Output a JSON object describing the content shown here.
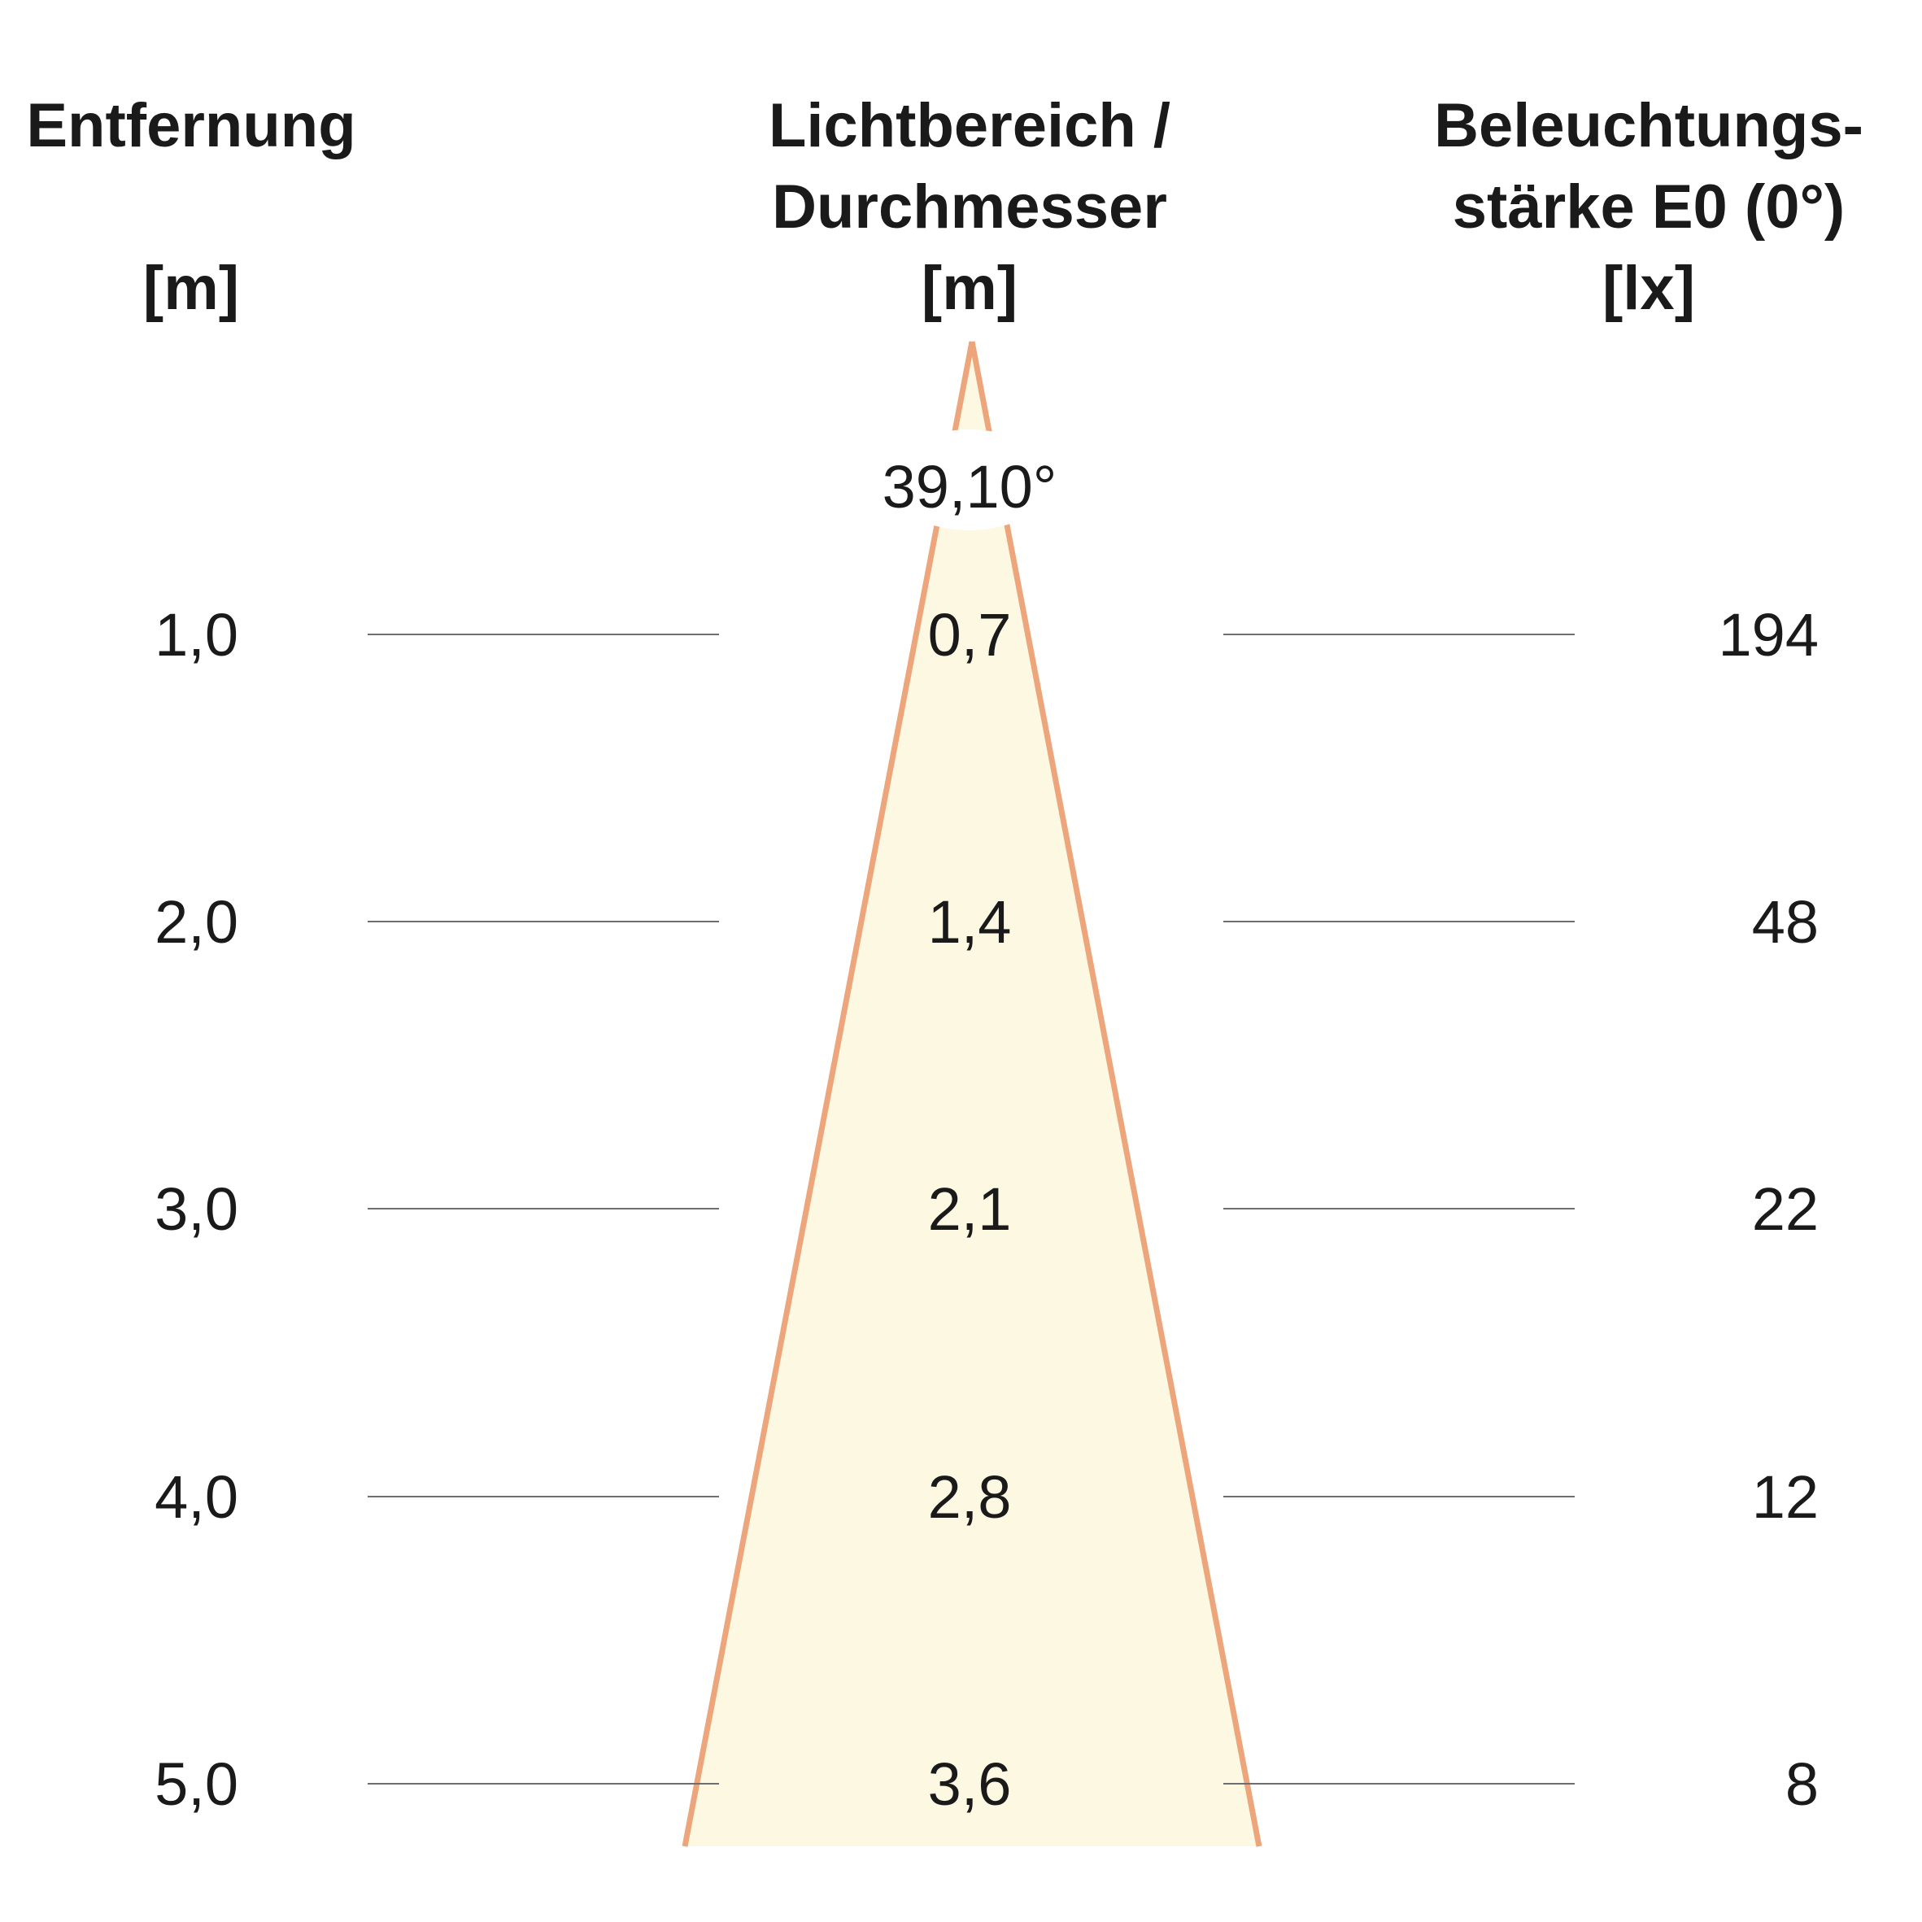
{
  "headers": {
    "distance": [
      "Entfernung",
      "",
      "[m]"
    ],
    "diameter": [
      "Lichtbereich /",
      "Durchmesser",
      "[m]"
    ],
    "illuminance": [
      "Beleuchtungs-",
      "stärke E0 (0°)",
      "[lx]"
    ]
  },
  "beam_angle": "39,10°",
  "rows": [
    {
      "distance": "1,0",
      "diameter": "0,7",
      "illuminance": "194"
    },
    {
      "distance": "2,0",
      "diameter": "1,4",
      "illuminance": "48"
    },
    {
      "distance": "3,0",
      "diameter": "2,1",
      "illuminance": "22"
    },
    {
      "distance": "4,0",
      "diameter": "2,8",
      "illuminance": "12"
    },
    {
      "distance": "5,0",
      "diameter": "3,6",
      "illuminance": "8"
    }
  ],
  "colors": {
    "beam_fill": "#fcf8e2",
    "beam_edge": "#eda57c",
    "guide_line": "#6e6e6e",
    "text": "#1a1a1a"
  }
}
